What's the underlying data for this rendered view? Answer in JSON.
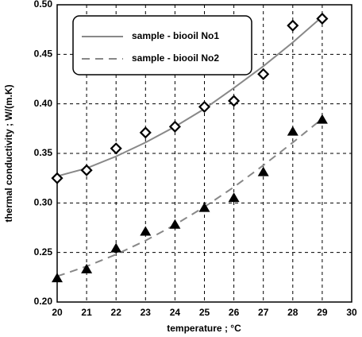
{
  "chart_data": {
    "type": "line",
    "x_label": "temperature  ;  °C",
    "y_label": "thermal conductivity   ;   W/(m.K)",
    "x": [
      20,
      21,
      22,
      23,
      24,
      25,
      26,
      27,
      28,
      29
    ],
    "series": [
      {
        "name": "sample - biooil No1",
        "color": "#888888",
        "marker": "diamond",
        "line_style": "solid",
        "values": [
          0.325,
          0.333,
          0.355,
          0.371,
          0.377,
          0.397,
          0.403,
          0.43,
          0.479,
          0.486
        ],
        "fit": [
          0.327,
          0.335,
          0.347,
          0.361,
          0.377,
          0.395,
          0.416,
          0.438,
          0.462,
          0.488
        ]
      },
      {
        "name": "sample - biooil No2",
        "color": "#888888",
        "marker": "triangle",
        "line_style": "dashed",
        "values": [
          0.224,
          0.233,
          0.254,
          0.271,
          0.278,
          0.295,
          0.305,
          0.331,
          0.372,
          0.384
        ],
        "fit": [
          0.226,
          0.236,
          0.248,
          0.262,
          0.278,
          0.296,
          0.316,
          0.338,
          0.361,
          0.385
        ]
      }
    ],
    "xlim": [
      20,
      30
    ],
    "xticks": [
      20,
      21,
      22,
      23,
      24,
      25,
      26,
      27,
      28,
      29,
      30
    ],
    "ylim": [
      0.2,
      0.5
    ],
    "yticks": [
      {
        "value": 0.2,
        "label": "0.20"
      },
      0.25,
      {
        "value": 0.3,
        "label": "0.30"
      },
      0.35,
      {
        "value": 0.4,
        "label": "0.40"
      },
      0.45,
      {
        "value": 0.5,
        "label": "0.50"
      }
    ],
    "grid": true,
    "legend": "upper-left"
  }
}
